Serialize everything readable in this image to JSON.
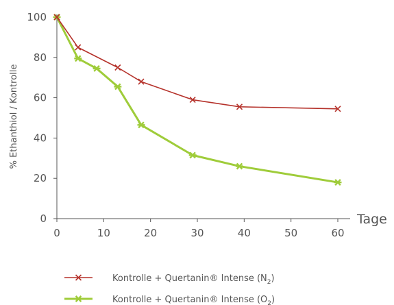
{
  "chart_data": {
    "type": "line",
    "title": "",
    "xlabel": "Tage",
    "ylabel": "% Ethanthiol / Kontrolle",
    "xlim": [
      0,
      60
    ],
    "ylim": [
      0,
      100
    ],
    "xticks": [
      "0",
      "10",
      "20",
      "30",
      "40",
      "50",
      "60"
    ],
    "yticks": [
      "0",
      "20",
      "40",
      "60",
      "80",
      "100"
    ],
    "grid": false,
    "legend_position": "bottom",
    "series": [
      {
        "name": "Kontrolle + Quertanin® Intense (N",
        "name_subscript": "2",
        "name_suffix": ")",
        "color": "#b5322b",
        "marker": "x",
        "x": [
          0,
          4.5,
          13,
          18,
          29,
          39,
          60
        ],
        "y": [
          100,
          85,
          75,
          68,
          59,
          55.5,
          54.5
        ]
      },
      {
        "name": "Kontrolle + Quertanin® Intense (O",
        "name_subscript": "2",
        "name_suffix": ")",
        "color": "#9fcc3a",
        "marker": "asterisk",
        "x": [
          0,
          4.5,
          8.5,
          13,
          18,
          29,
          39,
          60
        ],
        "y": [
          100,
          79.5,
          74.5,
          65.5,
          46.5,
          31.5,
          26,
          18
        ]
      }
    ]
  }
}
